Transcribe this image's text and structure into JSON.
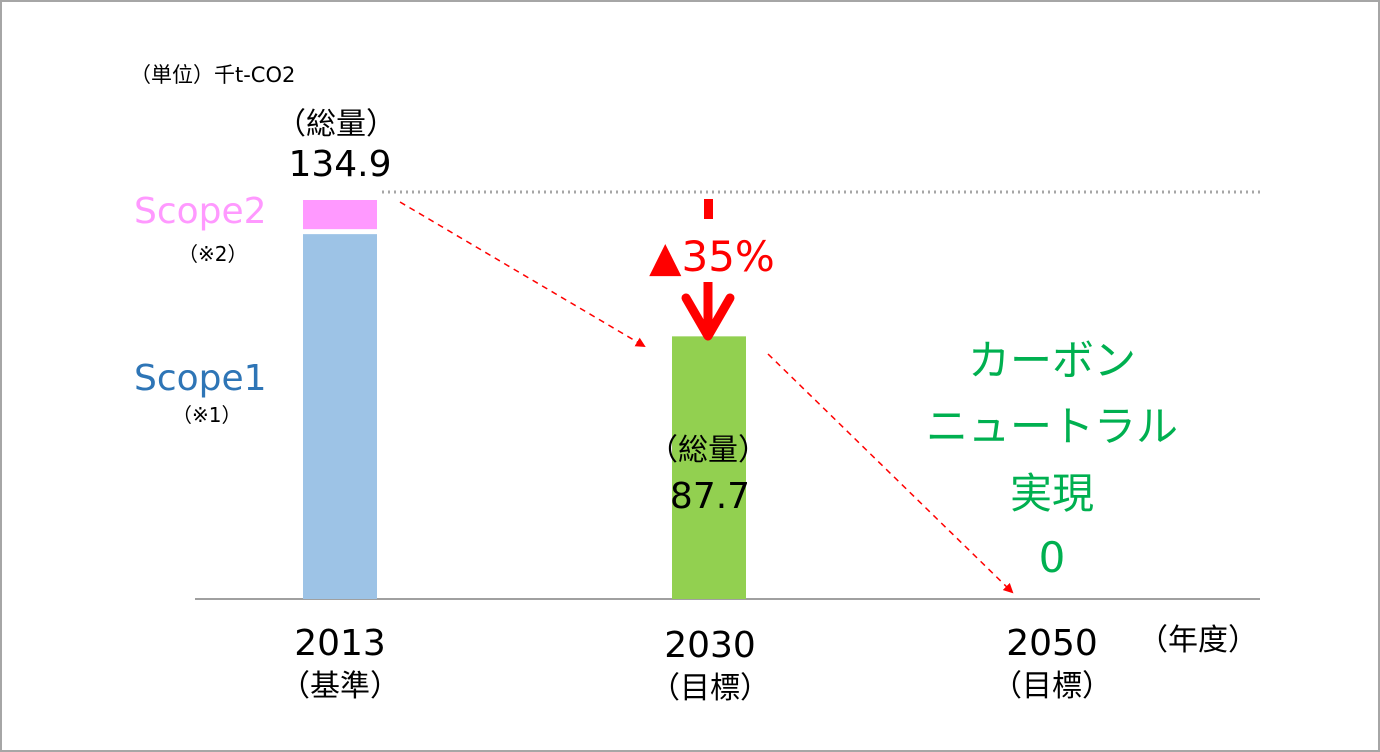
{
  "chart_data": {
    "type": "bar",
    "unit_label": "（単位）千t-CO2",
    "x_unit_label": "（年度）",
    "categories": [
      {
        "year": "2013",
        "tag": "（基準）"
      },
      {
        "year": "2030",
        "tag": "（目標）"
      },
      {
        "year": "2050",
        "tag": "（目標）"
      }
    ],
    "series": [
      {
        "name": "Scope1",
        "note": "（※1）",
        "color": "#9dc3e6"
      },
      {
        "name": "Scope2",
        "note": "（※2）",
        "color": "#ff99ff"
      }
    ],
    "bars": [
      {
        "category": "2013",
        "total": 134.9,
        "segments": [
          {
            "series": "Scope1",
            "value": 123.5
          },
          {
            "series": "Scope2",
            "value": 11.4
          }
        ]
      },
      {
        "category": "2030",
        "total": 87.7,
        "color": "#92d050"
      },
      {
        "category": "2050",
        "total": 0
      }
    ],
    "total_label": "（総量）",
    "total_2013_text": "134.9",
    "total_2030_text": "87.7",
    "reduction_text": "▲35%",
    "carbon_neutral_lines": [
      "カーボン",
      "ニュートラル",
      "実現",
      "0"
    ],
    "ylim": [
      0,
      134.9
    ],
    "colors": {
      "scope1_text": "#2e75b6",
      "scope2_text": "#ff99ff",
      "reduction": "#ff0000",
      "neutral": "#00b050",
      "trend_arrow": "#ff0000",
      "axis": "#808080"
    }
  }
}
